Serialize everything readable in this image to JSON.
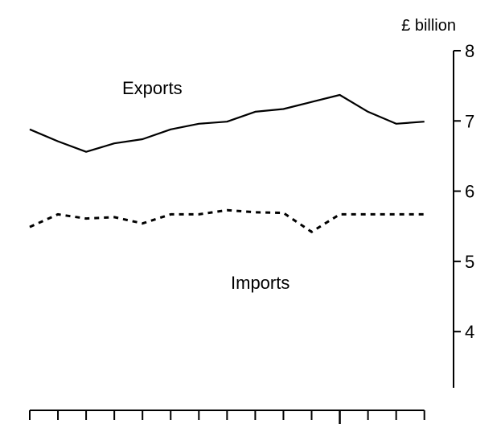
{
  "chart_data": {
    "type": "line",
    "title": "",
    "xlabel": "",
    "ylabel": "£ billion",
    "ylim": [
      3.2,
      8
    ],
    "y_ticks": [
      4,
      5,
      6,
      7,
      8
    ],
    "y_axis_side": "right",
    "grid": false,
    "x_tick_count": 15,
    "x": [
      0,
      1,
      2,
      3,
      4,
      5,
      6,
      7,
      8,
      9,
      10,
      11,
      12,
      13,
      14
    ],
    "series": [
      {
        "name": "Exports",
        "style": "solid",
        "color": "#000000",
        "values": [
          6.88,
          6.71,
          6.56,
          6.68,
          6.74,
          6.88,
          6.96,
          6.99,
          7.13,
          7.17,
          7.27,
          7.37,
          7.13,
          6.96,
          6.99
        ]
      },
      {
        "name": "Imports",
        "style": "dotted",
        "color": "#000000",
        "values": [
          5.49,
          5.67,
          5.61,
          5.63,
          5.54,
          5.67,
          5.67,
          5.73,
          5.7,
          5.69,
          5.42,
          5.67,
          5.67,
          5.67,
          5.67
        ]
      }
    ]
  }
}
